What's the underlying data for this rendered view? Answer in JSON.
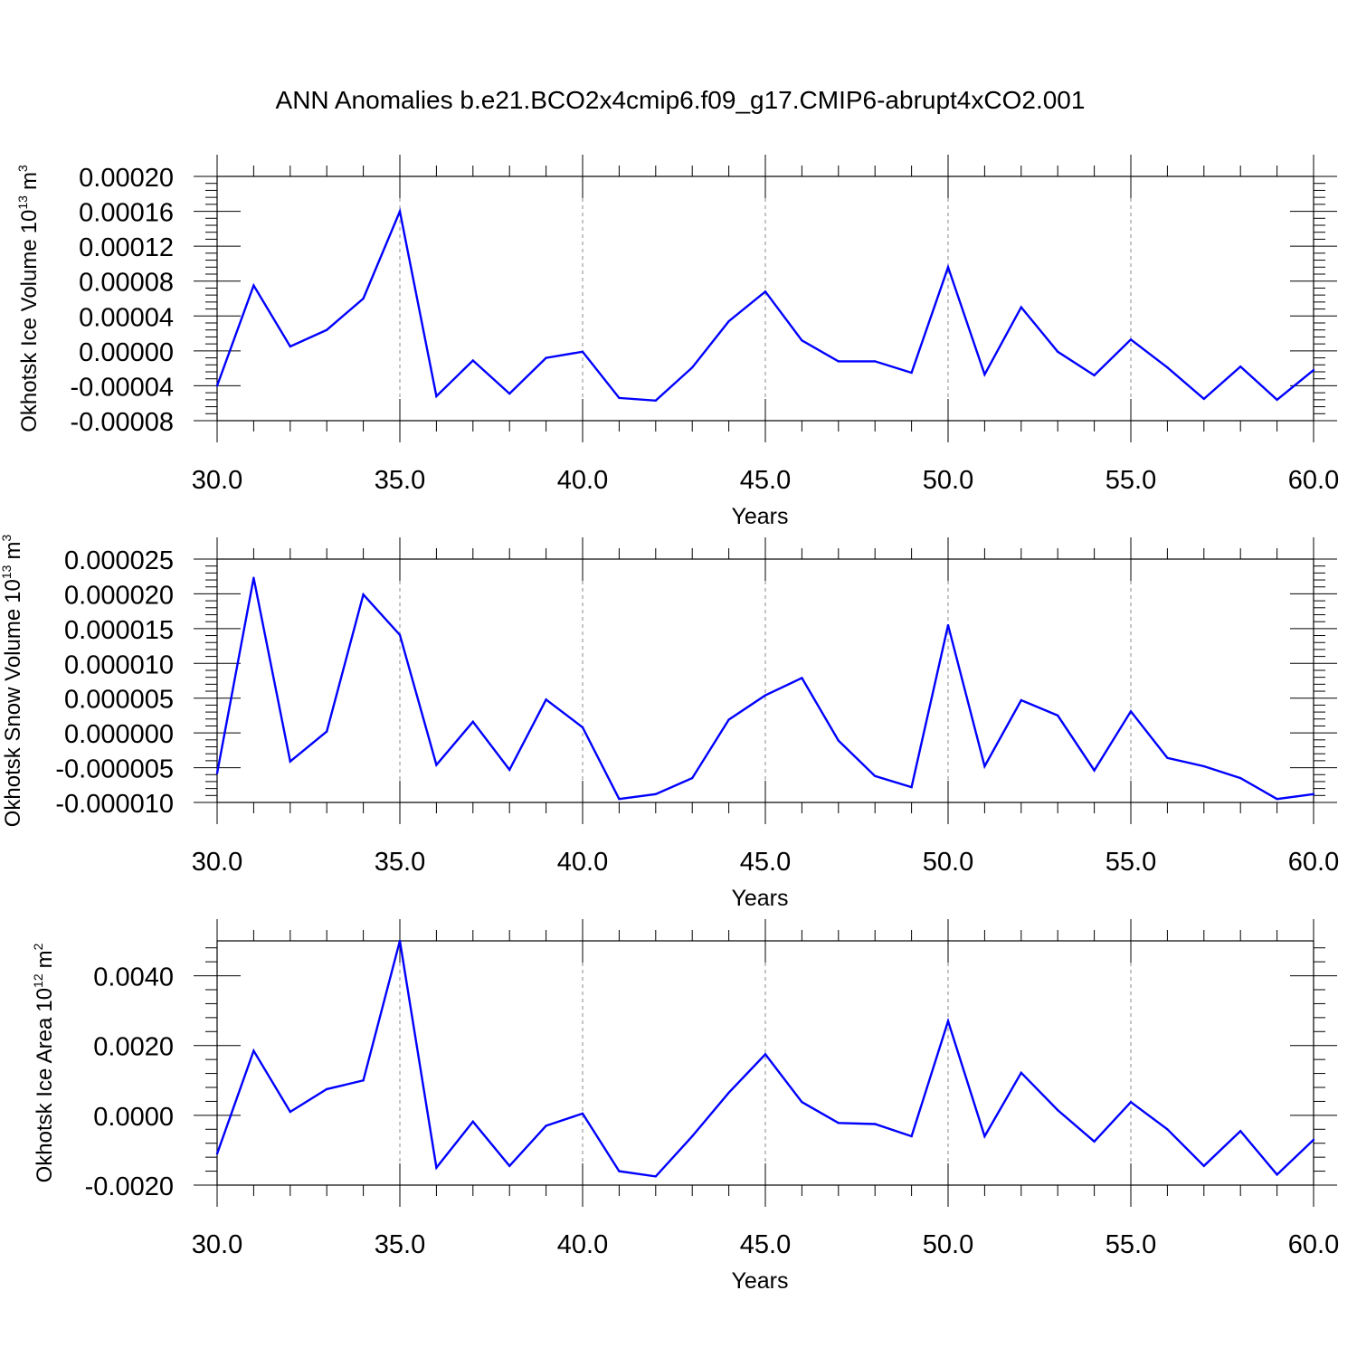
{
  "figure": {
    "title": "ANN Anomalies b.e21.BCO2x4cmip6.f09_g17.CMIP6-abrupt4xCO2.001",
    "line_color": "#0000ff",
    "grid_color": "#888888",
    "axis_color": "#000000",
    "background": "#ffffff"
  },
  "chart_data": [
    {
      "type": "line",
      "title": "",
      "xlabel": "Years",
      "ylabel": "Okhotsk Ice Volume",
      "ylabel_unit": "10",
      "ylabel_exp": "13",
      "ylabel_suffix": "m",
      "ylabel_suffix_exp": "3",
      "xlim": [
        30,
        60
      ],
      "ylim": [
        -8e-05,
        0.0002
      ],
      "x_ticks": [
        30,
        35,
        40,
        45,
        50,
        55,
        60
      ],
      "x_tick_labels": [
        "30.0",
        "35.0",
        "40.0",
        "45.0",
        "50.0",
        "55.0",
        "60.0"
      ],
      "y_ticks": [
        -8e-05,
        -4e-05,
        0,
        4e-05,
        8e-05,
        0.00012,
        0.00016,
        0.0002
      ],
      "y_tick_labels": [
        "-0.00008",
        "-0.00004",
        "0.00000",
        "0.00004",
        "0.00008",
        "0.00012",
        "0.00016",
        "0.00020"
      ],
      "grid": "vertical dashed at major x ticks",
      "series": [
        {
          "x": [
            30,
            31,
            32,
            33,
            34,
            35,
            36,
            37,
            38,
            39,
            40,
            41,
            42,
            43,
            44,
            45,
            46,
            47,
            48,
            49,
            50,
            51,
            52,
            53,
            54,
            55,
            56,
            57,
            58,
            59,
            60
          ],
          "values": [
            -4e-05,
            7.5e-05,
            5e-06,
            2.4e-05,
            6e-05,
            0.00016,
            -5.2e-05,
            -1.1e-05,
            -4.9e-05,
            -8e-06,
            -1e-06,
            -5.4e-05,
            -5.7e-05,
            -1.9e-05,
            3.4e-05,
            6.8e-05,
            1.2e-05,
            -1.2e-05,
            -1.2e-05,
            -2.5e-05,
            9.6e-05,
            -2.7e-05,
            5e-05,
            -1e-06,
            -2.8e-05,
            1.3e-05,
            -1.9e-05,
            -5.5e-05,
            -1.8e-05,
            -5.6e-05,
            -2.2e-05
          ]
        }
      ]
    },
    {
      "type": "line",
      "title": "",
      "xlabel": "Years",
      "ylabel": "Okhotsk Snow Volume",
      "ylabel_unit": "10",
      "ylabel_exp": "13",
      "ylabel_suffix": "m",
      "ylabel_suffix_exp": "3",
      "xlim": [
        30,
        60
      ],
      "ylim": [
        -1e-05,
        2.5e-05
      ],
      "x_ticks": [
        30,
        35,
        40,
        45,
        50,
        55,
        60
      ],
      "x_tick_labels": [
        "30.0",
        "35.0",
        "40.0",
        "45.0",
        "50.0",
        "55.0",
        "60.0"
      ],
      "y_ticks": [
        -1e-05,
        -5e-06,
        0,
        5e-06,
        1e-05,
        1.5e-05,
        2e-05,
        2.5e-05
      ],
      "y_tick_labels": [
        "-0.000010",
        "-0.000005",
        "0.000000",
        "0.000005",
        "0.000010",
        "0.000015",
        "0.000020",
        "0.000025"
      ],
      "grid": "vertical dashed at major x ticks",
      "series": [
        {
          "x": [
            30,
            31,
            32,
            33,
            34,
            35,
            36,
            37,
            38,
            39,
            40,
            41,
            42,
            43,
            44,
            45,
            46,
            47,
            48,
            49,
            50,
            51,
            52,
            53,
            54,
            55,
            56,
            57,
            58,
            59,
            60
          ],
          "values": [
            -5.8e-06,
            2.23e-05,
            -4.1e-06,
            2e-07,
            1.99e-05,
            1.41e-05,
            -4.6e-06,
            1.6e-06,
            -5.3e-06,
            4.8e-06,
            8e-07,
            -9.5e-06,
            -8.8e-06,
            -6.5e-06,
            1.9e-06,
            5.4e-06,
            7.9e-06,
            -1.1e-06,
            -6.2e-06,
            -7.8e-06,
            1.55e-05,
            -4.8e-06,
            4.7e-06,
            2.5e-06,
            -5.4e-06,
            3.1e-06,
            -3.6e-06,
            -4.8e-06,
            -6.5e-06,
            -9.5e-06,
            -8.8e-06
          ]
        }
      ]
    },
    {
      "type": "line",
      "title": "",
      "xlabel": "Years",
      "ylabel": "Okhotsk Ice Area",
      "ylabel_unit": "10",
      "ylabel_exp": "12",
      "ylabel_suffix": "m",
      "ylabel_suffix_exp": "2",
      "xlim": [
        30,
        60
      ],
      "ylim": [
        -0.002,
        0.005
      ],
      "x_ticks": [
        30,
        35,
        40,
        45,
        50,
        55,
        60
      ],
      "x_tick_labels": [
        "30.0",
        "35.0",
        "40.0",
        "45.0",
        "50.0",
        "55.0",
        "60.0"
      ],
      "y_ticks": [
        -0.002,
        0,
        0.002,
        0.004
      ],
      "y_tick_labels": [
        "-0.0020",
        "0.0000",
        "0.0020",
        "0.0040"
      ],
      "grid": "vertical dashed at major x ticks",
      "series": [
        {
          "x": [
            30,
            31,
            32,
            33,
            34,
            35,
            36,
            37,
            38,
            39,
            40,
            41,
            42,
            43,
            44,
            45,
            46,
            47,
            48,
            49,
            50,
            51,
            52,
            53,
            54,
            55,
            56,
            57,
            58,
            59,
            60
          ],
          "values": [
            -0.0011,
            0.00185,
            0.0001,
            0.00075,
            0.001,
            0.005,
            -0.0015,
            -0.00018,
            -0.00145,
            -0.0003,
            5e-05,
            -0.0016,
            -0.00175,
            -0.0006,
            0.00065,
            0.00175,
            0.00038,
            -0.00022,
            -0.00025,
            -0.0006,
            0.0027,
            -0.0006,
            0.00122,
            0.00015,
            -0.00075,
            0.00038,
            -0.0004,
            -0.00145,
            -0.00045,
            -0.0017,
            -0.0007
          ]
        }
      ]
    }
  ]
}
